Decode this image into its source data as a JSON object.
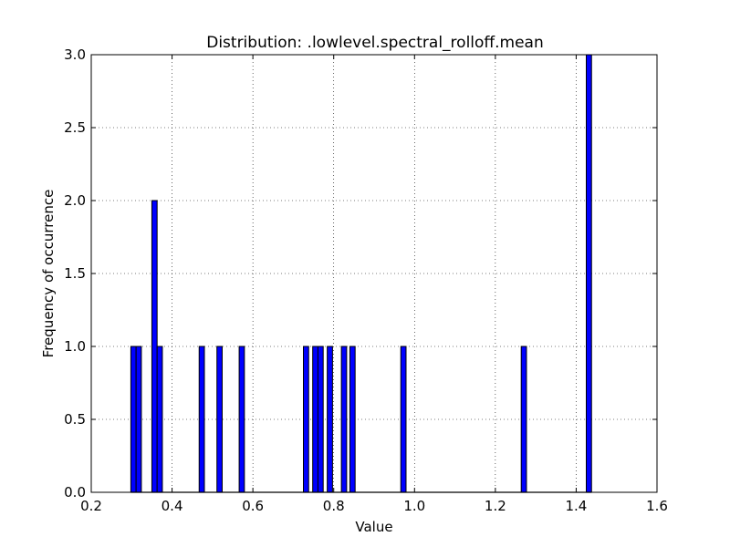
{
  "chart_data": {
    "type": "bar",
    "title": "Distribution: .lowlevel.spectral_rolloff.mean",
    "xlabel": "Value",
    "ylabel": "Frequency of occurrence",
    "xlim": [
      0.2,
      1.6
    ],
    "ylim": [
      0.0,
      3.0
    ],
    "xticks": [
      "0.2",
      "0.4",
      "0.6",
      "0.8",
      "1.0",
      "1.2",
      "1.4",
      "1.6"
    ],
    "yticks": [
      "0.0",
      "0.5",
      "1.0",
      "1.5",
      "2.0",
      "2.5",
      "3.0"
    ],
    "grid": true,
    "bar_color": "#0000ff",
    "bins": [
      {
        "x0": 0.298,
        "x1": 0.311,
        "value": 1
      },
      {
        "x0": 0.311,
        "x1": 0.324,
        "value": 1
      },
      {
        "x0": 0.35,
        "x1": 0.363,
        "value": 2
      },
      {
        "x0": 0.363,
        "x1": 0.376,
        "value": 1
      },
      {
        "x0": 0.467,
        "x1": 0.48,
        "value": 1
      },
      {
        "x0": 0.511,
        "x1": 0.524,
        "value": 1
      },
      {
        "x0": 0.566,
        "x1": 0.579,
        "value": 1
      },
      {
        "x0": 0.725,
        "x1": 0.738,
        "value": 1
      },
      {
        "x0": 0.748,
        "x1": 0.761,
        "value": 1
      },
      {
        "x0": 0.761,
        "x1": 0.774,
        "value": 1
      },
      {
        "x0": 0.784,
        "x1": 0.797,
        "value": 1
      },
      {
        "x0": 0.819,
        "x1": 0.832,
        "value": 1
      },
      {
        "x0": 0.84,
        "x1": 0.853,
        "value": 1
      },
      {
        "x0": 0.966,
        "x1": 0.979,
        "value": 1
      },
      {
        "x0": 1.264,
        "x1": 1.277,
        "value": 1
      },
      {
        "x0": 1.425,
        "x1": 1.438,
        "value": 3
      }
    ]
  }
}
